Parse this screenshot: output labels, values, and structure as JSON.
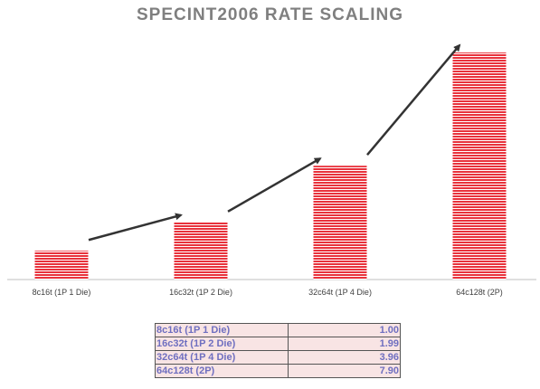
{
  "chart_data": {
    "type": "bar",
    "title": "SPECINT2006 RATE SCALING",
    "xlabel": "",
    "ylabel": "",
    "categories": [
      "8c16t (1P 1 Die)",
      "16c32t (1P 2 Die)",
      "32c64t (1P 4 Die)",
      "64c128t (2P)"
    ],
    "values": [
      1.0,
      1.99,
      3.96,
      7.9
    ],
    "ylim": [
      0,
      8.5
    ],
    "grid": false,
    "legend": "none",
    "bar_color": "#e8323c",
    "bar_stripe_color": "#ffffff",
    "arrow_color": "#333333",
    "annotations": "arrows connecting consecutive bars"
  },
  "table": {
    "rows": [
      {
        "label": "8c16t (1P 1 Die)",
        "value": "1.00"
      },
      {
        "label": "16c32t (1P 2 Die)",
        "value": "1.99"
      },
      {
        "label": "32c64t (1P 4 Die)",
        "value": "3.96"
      },
      {
        "label": "64c128t (2P)",
        "value": "7.90"
      }
    ]
  }
}
